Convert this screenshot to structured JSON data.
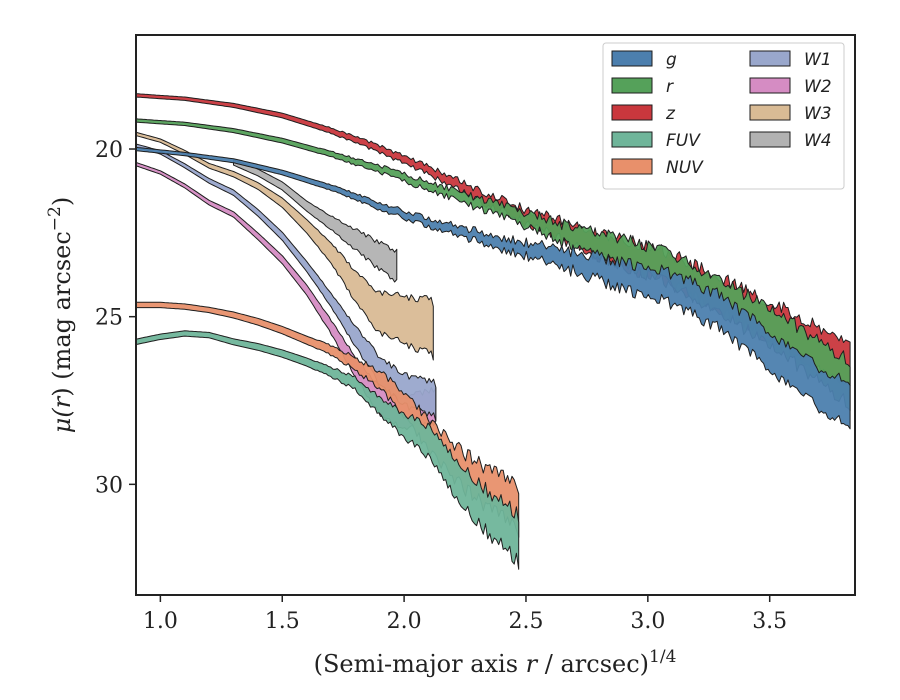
{
  "chart_data": {
    "type": "area",
    "xlabel": "(Semi-major axis r / arcsec)",
    "xlabel_prefix": "(Semi-major axis ",
    "xlabel_var": "r",
    "xlabel_suffix": " / arcsec)",
    "xlabel_sup": "1/4",
    "ylabel": "μ(r) (mag arcsec−2)",
    "ylabel_prefix": "μ(",
    "ylabel_var": "r",
    "ylabel_suffix": ") (mag arcsec",
    "ylabel_sup": "−2",
    "ylabel_close": ")",
    "xlim": [
      0.9,
      3.85
    ],
    "ylim": [
      33.3,
      16.6
    ],
    "y_inverted": true,
    "xticks": [
      1.0,
      1.5,
      2.0,
      2.5,
      3.0,
      3.5
    ],
    "xtick_labels": [
      "1.0",
      "1.5",
      "2.0",
      "2.5",
      "3.0",
      "3.5"
    ],
    "yticks": [
      20,
      25,
      30
    ],
    "ytick_labels": [
      "20",
      "25",
      "30"
    ],
    "grid": false,
    "legend_position": "top-right",
    "legend_columns": 2,
    "series": [
      {
        "name": "g",
        "color": "#4c7fae",
        "x": [
          0.9,
          1.1,
          1.3,
          1.5,
          1.7,
          1.9,
          2.1,
          2.3,
          2.5,
          2.7,
          2.9,
          3.1,
          3.3,
          3.5,
          3.7,
          3.83
        ],
        "y": [
          20.0,
          20.15,
          20.35,
          20.7,
          21.15,
          21.7,
          22.2,
          22.6,
          23.0,
          23.35,
          23.75,
          24.15,
          24.9,
          26.0,
          27.1,
          27.7
        ],
        "err": [
          0.05,
          0.05,
          0.06,
          0.07,
          0.08,
          0.1,
          0.12,
          0.15,
          0.2,
          0.3,
          0.4,
          0.45,
          0.5,
          0.55,
          0.6,
          0.65
        ],
        "jitter": 0.2
      },
      {
        "name": "r",
        "color": "#55a15a",
        "x": [
          0.9,
          1.1,
          1.3,
          1.5,
          1.7,
          1.9,
          2.1,
          2.3,
          2.5,
          2.7,
          2.9,
          3.1,
          3.3,
          3.5,
          3.7,
          3.83
        ],
        "y": [
          19.15,
          19.25,
          19.45,
          19.75,
          20.15,
          20.6,
          21.1,
          21.6,
          22.1,
          22.65,
          23.1,
          23.6,
          24.4,
          25.3,
          26.3,
          27.0
        ],
        "err": [
          0.05,
          0.05,
          0.06,
          0.07,
          0.08,
          0.1,
          0.12,
          0.15,
          0.2,
          0.3,
          0.4,
          0.45,
          0.5,
          0.55,
          0.6,
          0.65
        ],
        "jitter": 0.2
      },
      {
        "name": "z",
        "color": "#c9373d",
        "x": [
          0.9,
          1.1,
          1.3,
          1.5,
          1.7,
          1.9,
          2.1,
          2.3,
          2.5,
          2.7,
          2.9,
          3.1,
          3.3,
          3.5,
          3.7,
          3.83
        ],
        "y": [
          18.4,
          18.5,
          18.7,
          19.0,
          19.45,
          20.0,
          20.65,
          21.35,
          22.0,
          22.6,
          23.1,
          23.6,
          24.35,
          25.1,
          25.9,
          26.5
        ],
        "err": [
          0.05,
          0.05,
          0.06,
          0.07,
          0.08,
          0.1,
          0.12,
          0.15,
          0.2,
          0.3,
          0.4,
          0.45,
          0.5,
          0.55,
          0.6,
          0.65
        ],
        "jitter": 0.2
      },
      {
        "name": "FUV",
        "color": "#6fb59a",
        "x": [
          0.9,
          1.0,
          1.1,
          1.2,
          1.3,
          1.4,
          1.5,
          1.6,
          1.7,
          1.8,
          1.9,
          2.0,
          2.1,
          2.2,
          2.3,
          2.4,
          2.47
        ],
        "y": [
          25.75,
          25.6,
          25.5,
          25.55,
          25.75,
          25.9,
          26.1,
          26.35,
          26.65,
          27.0,
          27.7,
          28.2,
          28.8,
          29.6,
          30.5,
          31.2,
          31.6
        ],
        "err": [
          0.08,
          0.08,
          0.08,
          0.08,
          0.09,
          0.1,
          0.11,
          0.12,
          0.14,
          0.18,
          0.25,
          0.35,
          0.45,
          0.55,
          0.6,
          0.65,
          0.7
        ],
        "jitter": 0.4
      },
      {
        "name": "NUV",
        "color": "#e8906b",
        "x": [
          0.9,
          1.0,
          1.1,
          1.2,
          1.3,
          1.4,
          1.5,
          1.6,
          1.7,
          1.8,
          1.9,
          2.0,
          2.1,
          2.2,
          2.3,
          2.4,
          2.47
        ],
        "y": [
          24.65,
          24.65,
          24.7,
          24.8,
          24.95,
          25.15,
          25.4,
          25.7,
          26.0,
          26.4,
          26.9,
          27.6,
          28.5,
          29.3,
          29.9,
          30.4,
          30.8
        ],
        "err": [
          0.08,
          0.08,
          0.08,
          0.08,
          0.09,
          0.1,
          0.11,
          0.12,
          0.14,
          0.18,
          0.25,
          0.35,
          0.45,
          0.5,
          0.55,
          0.6,
          0.65
        ],
        "jitter": 0.4
      },
      {
        "name": "W1",
        "color": "#99a7cc",
        "x": [
          0.9,
          1.0,
          1.1,
          1.2,
          1.3,
          1.4,
          1.5,
          1.6,
          1.7,
          1.8,
          1.9,
          2.0,
          2.1,
          2.13
        ],
        "y": [
          19.9,
          20.1,
          20.5,
          20.95,
          21.3,
          21.9,
          22.6,
          23.5,
          24.5,
          25.6,
          26.6,
          27.2,
          27.4,
          27.5
        ],
        "err": [
          0.05,
          0.05,
          0.06,
          0.07,
          0.08,
          0.1,
          0.12,
          0.15,
          0.2,
          0.3,
          0.4,
          0.45,
          0.5,
          0.5
        ],
        "jitter": 0.3
      },
      {
        "name": "W2",
        "color": "#d58cc3",
        "x": [
          0.9,
          1.0,
          1.1,
          1.2,
          1.3,
          1.4,
          1.5,
          1.6,
          1.7,
          1.8,
          1.9,
          2.0,
          2.1,
          2.13
        ],
        "y": [
          20.45,
          20.7,
          21.1,
          21.6,
          21.95,
          22.6,
          23.3,
          24.2,
          25.3,
          26.5,
          27.5,
          27.9,
          27.7,
          27.6
        ],
        "err": [
          0.05,
          0.05,
          0.06,
          0.07,
          0.08,
          0.1,
          0.12,
          0.15,
          0.2,
          0.3,
          0.4,
          0.45,
          0.5,
          0.5
        ],
        "jitter": 0.3
      },
      {
        "name": "W3",
        "color": "#d9bb95",
        "x": [
          0.9,
          1.0,
          1.1,
          1.2,
          1.3,
          1.4,
          1.5,
          1.6,
          1.7,
          1.8,
          1.9,
          2.0,
          2.1,
          2.12
        ],
        "y": [
          19.55,
          19.75,
          20.1,
          20.5,
          20.75,
          21.1,
          21.6,
          22.3,
          23.1,
          24.1,
          24.9,
          25.1,
          25.3,
          25.4
        ],
        "err": [
          0.05,
          0.05,
          0.06,
          0.07,
          0.08,
          0.1,
          0.14,
          0.2,
          0.3,
          0.45,
          0.6,
          0.7,
          0.8,
          0.8
        ],
        "jitter": 0.35
      },
      {
        "name": "W4",
        "color": "#b2b2b2",
        "x": [
          1.3,
          1.4,
          1.5,
          1.6,
          1.7,
          1.8,
          1.9,
          1.97
        ],
        "y": [
          20.4,
          20.7,
          21.1,
          21.7,
          22.2,
          22.7,
          23.2,
          23.5
        ],
        "err": [
          0.08,
          0.1,
          0.12,
          0.15,
          0.2,
          0.3,
          0.4,
          0.45
        ],
        "jitter": 0.3
      }
    ],
    "legend": [
      {
        "name": "g",
        "color": "#4c7fae"
      },
      {
        "name": "r",
        "color": "#55a15a"
      },
      {
        "name": "z",
        "color": "#c9373d"
      },
      {
        "name": "FUV",
        "color": "#6fb59a"
      },
      {
        "name": "NUV",
        "color": "#e8906b"
      },
      {
        "name": "W1",
        "color": "#99a7cc"
      },
      {
        "name": "W2",
        "color": "#d58cc3"
      },
      {
        "name": "W3",
        "color": "#d9bb95"
      },
      {
        "name": "W4",
        "color": "#b2b2b2"
      }
    ]
  }
}
